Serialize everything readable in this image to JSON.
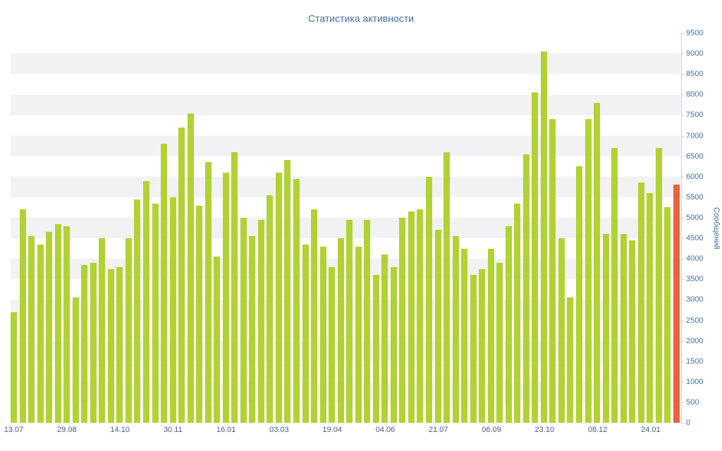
{
  "chart_data": {
    "type": "bar",
    "title": "Статистика активности",
    "xlabel": "",
    "ylabel": "Сообщений",
    "ylim": [
      0,
      9500
    ],
    "ytick_step": 500,
    "grid": "horizontal-stripes",
    "legend": "none",
    "x_tick_labels": [
      "13.07",
      "29.08",
      "14.10",
      "30.11",
      "16.01",
      "03.03",
      "19.04",
      "04.06",
      "21.07",
      "06.09",
      "23.10",
      "08.12",
      "24.01"
    ],
    "x_tick_bar_indices": [
      0,
      6,
      12,
      18,
      24,
      30,
      36,
      42,
      48,
      54,
      60,
      66,
      72
    ],
    "values": [
      2700,
      5200,
      4550,
      4350,
      4650,
      4850,
      4800,
      3050,
      3850,
      3900,
      4500,
      3750,
      3800,
      4500,
      5450,
      5900,
      5350,
      6800,
      5500,
      7200,
      7550,
      5300,
      6350,
      4050,
      6100,
      6600,
      5000,
      4550,
      4950,
      5550,
      6100,
      6400,
      5950,
      4350,
      5200,
      4300,
      3800,
      4500,
      4950,
      4300,
      4950,
      3600,
      4100,
      3800,
      5000,
      5150,
      5200,
      6000,
      4700,
      6600,
      4550,
      4250,
      3600,
      3750,
      4250,
      3900,
      4800,
      5350,
      6550,
      8050,
      9050,
      7400,
      4500,
      3050,
      6250,
      7400,
      7800,
      4600,
      6700,
      4600,
      4450,
      5850,
      5600,
      6700,
      5250,
      5800
    ],
    "highlight_index": 75
  },
  "colors": {
    "bar": "#b2d233",
    "highlight_bar": "#e8633e",
    "stripe": "#f2f2f4",
    "axis_line": "#c9ced6",
    "title_text": "#44699d",
    "y_tick_text": "#3e71a6",
    "x_tick_text": "#4a5d78",
    "background": "#ffffff"
  }
}
